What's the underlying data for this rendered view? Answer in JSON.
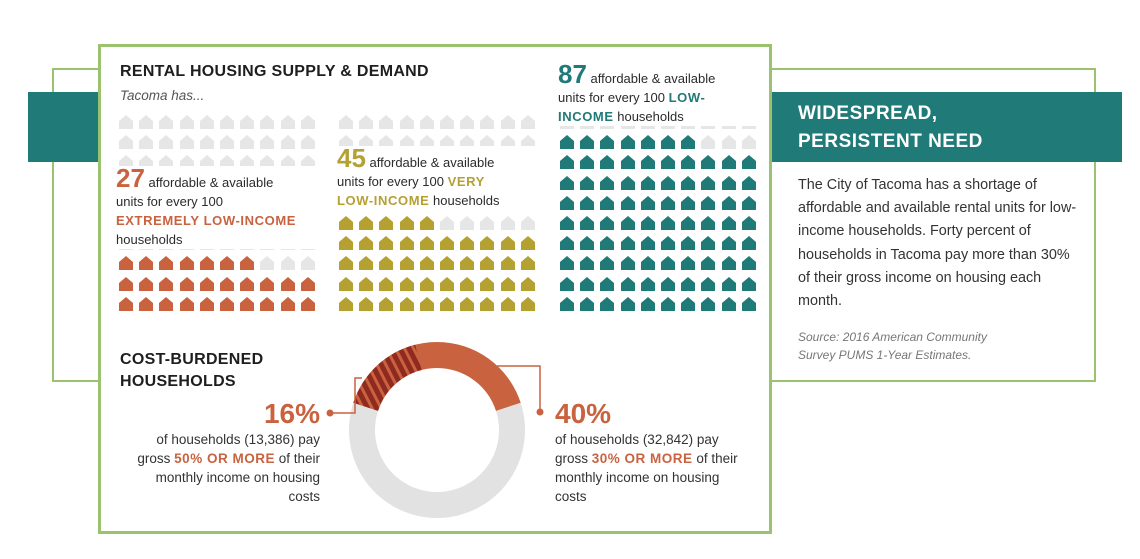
{
  "sidebar": {
    "title_line1": "WIDESPREAD,",
    "title_line2": "PERSISTENT NEED",
    "body": "The City of Tacoma has a shortage of affordable and available rental units for low-income households. Forty percent of households in Tacoma pay more than 30% of their gross income on housing each month.",
    "source_line1": "Source: 2016 American Community",
    "source_line2": "Survey PUMS 1-Year Estimates."
  },
  "supply": {
    "title": "RENTAL HOUSING SUPPLY & DEMAND",
    "subtitle": "Tacoma has...",
    "elow": {
      "num": "27",
      "t1": "affordable & available",
      "t2": "units for every 100",
      "strong": "EXTREMELY LOW-INCOME",
      "t3": "households"
    },
    "vlow": {
      "num": "45",
      "t1": "affordable & available",
      "t2": "units for every 100",
      "strong1": "VERY",
      "strong2": "LOW-INCOME",
      "t3": "households"
    },
    "low": {
      "num": "87",
      "t1": "affordable & available",
      "t2": "units for every 100",
      "strong1": "LOW-",
      "strong2": "INCOME",
      "t3": "households"
    }
  },
  "burden": {
    "title_line1": "COST-BURDENED",
    "title_line2": "HOUSEHOLDS",
    "left": {
      "pct": "16%",
      "l1": "of households (13,386) pay",
      "l2a": "gross",
      "strong": "50% OR MORE",
      "l2b": "of their",
      "l3": "monthly income on housing",
      "l4": "costs"
    },
    "right": {
      "pct": "40%",
      "l1": "of households (32,842) pay",
      "l2a": "gross",
      "strong": "30% OR MORE",
      "l2b": "of their",
      "l3": "monthly income on housing",
      "l4": "costs"
    }
  },
  "chart_data": [
    {
      "type": "waffle",
      "title": "RENTAL HOUSING SUPPLY & DEMAND",
      "subtitle": "Tacoma has...",
      "total": 100,
      "series": [
        {
          "name": "EXTREMELY LOW-INCOME",
          "value": 27,
          "color": "#c9623f"
        },
        {
          "name": "VERY LOW-INCOME",
          "value": 45,
          "color": "#b5a032"
        },
        {
          "name": "LOW-INCOME",
          "value": 87,
          "color": "#1f7a78"
        }
      ],
      "empty_color": "#e6e6e6"
    },
    {
      "type": "donut",
      "title": "COST-BURDENED HOUSEHOLDS",
      "values": [
        40,
        60
      ],
      "highlight": {
        "value": 16,
        "color": "#8e2a1f",
        "pattern": "hatched"
      },
      "colors": {
        "burdened": "#c9623f",
        "rest": "#e2e2e2"
      },
      "start": "top"
    }
  ]
}
